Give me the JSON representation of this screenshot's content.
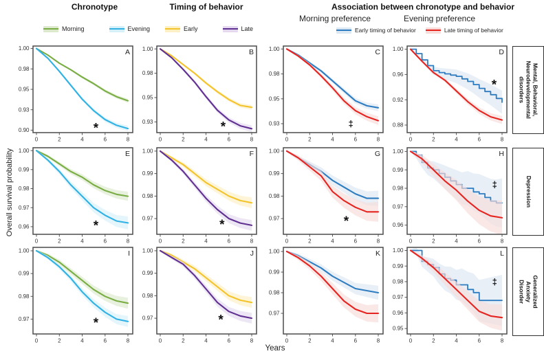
{
  "header": {
    "col1_title": "Chronotype",
    "col2_title": "Timing of behavior",
    "assoc_title": "Association between chronotype  and behavior",
    "sub_morning": "Morning preference",
    "sub_evening": "Evening preference"
  },
  "axes": {
    "ylabel": "Overall survival probability",
    "xlabel": "Years"
  },
  "row_labels": [
    "Mental, Behavioral,\nNeurodevelopmental\ndisorders",
    "Depression",
    "Generalized Anxiety\nDisorder"
  ],
  "legends": {
    "chronotype": [
      {
        "label": "Morning",
        "color": "#79ad44",
        "band": "#dce9cc"
      },
      {
        "label": "Evening",
        "color": "#2fb1e3",
        "band": "#d6f0fa"
      }
    ],
    "timing": [
      {
        "label": "Early",
        "color": "#f3c32c",
        "band": "#fdf0c4"
      },
      {
        "label": "Late",
        "color": "#5f2f91",
        "band": "#e4d9ee"
      }
    ],
    "association": [
      {
        "label": "Early timing of behavior",
        "color": "#2e7cc0",
        "band": "#dbe7f3"
      },
      {
        "label": "Late timing of behavior",
        "color": "#e52420",
        "band": "#f8dcda"
      }
    ]
  },
  "chart_data": [
    {
      "type": "line",
      "letter": "A",
      "group": "Chronotype",
      "row": "Mental, Behavioral, Neurodevelopmental disorders",
      "xticks": [
        0,
        2,
        4,
        6,
        8
      ],
      "ylim": [
        0.897,
        1.003
      ],
      "ytick_values": [
        1.0,
        0.975,
        0.95,
        0.925,
        0.9
      ],
      "ytick_labels": [
        "1.00",
        "0.98",
        "0.95",
        "0.93",
        "0.90"
      ],
      "sig": {
        "symbol": "*",
        "x": 5.2,
        "y": 0.906
      },
      "series": [
        {
          "name": "Morning",
          "color": "#79ad44",
          "band_color": "#dce9cc",
          "band": 0.002,
          "values": [
            1.0,
            0.992,
            0.982,
            0.974,
            0.965,
            0.957,
            0.948,
            0.941,
            0.936
          ]
        },
        {
          "name": "Evening",
          "color": "#2fb1e3",
          "band_color": "#d6f0fa",
          "band": 0.003,
          "values": [
            1.0,
            0.988,
            0.972,
            0.955,
            0.938,
            0.924,
            0.913,
            0.906,
            0.902
          ]
        }
      ]
    },
    {
      "type": "line",
      "letter": "B",
      "group": "Timing of behavior",
      "row": "Mental, Behavioral, Neurodevelopmental disorders",
      "xticks": [
        0,
        2,
        4,
        6,
        8
      ],
      "ylim": [
        0.914,
        1.003
      ],
      "ytick_values": [
        1.0,
        0.975,
        0.95,
        0.925
      ],
      "ytick_labels": [
        "1.00",
        "0.98",
        "0.95",
        "0.93"
      ],
      "sig": {
        "symbol": "*",
        "x": 5.5,
        "y": 0.923
      },
      "series": [
        {
          "name": "Early",
          "color": "#f3c32c",
          "band_color": "#fdf0c4",
          "band": 0.002,
          "values": [
            1.0,
            0.993,
            0.984,
            0.975,
            0.965,
            0.956,
            0.948,
            0.942,
            0.94
          ]
        },
        {
          "name": "Late",
          "color": "#5f2f91",
          "band_color": "#e4d9ee",
          "band": 0.003,
          "values": [
            1.0,
            0.991,
            0.979,
            0.966,
            0.951,
            0.937,
            0.927,
            0.921,
            0.918
          ]
        }
      ]
    },
    {
      "type": "line",
      "letter": "C",
      "group": "Morning preference",
      "row": "Mental, Behavioral, Neurodevelopmental disorders",
      "xticks": [
        0,
        2,
        4,
        6,
        8
      ],
      "ylim": [
        0.916,
        1.003
      ],
      "ytick_values": [
        1.0,
        0.975,
        0.95,
        0.925
      ],
      "ytick_labels": [
        "1.00",
        "0.98",
        "0.95",
        "0.93"
      ],
      "sig": {
        "symbol": "‡",
        "x": 5.6,
        "y": 0.925
      },
      "series": [
        {
          "name": "Early timing of behavior",
          "color": "#2e7cc0",
          "band_color": "#dbe7f3",
          "band": 0.003,
          "values": [
            1.0,
            0.994,
            0.986,
            0.978,
            0.968,
            0.958,
            0.948,
            0.943,
            0.941
          ]
        },
        {
          "name": "Late timing of behavior",
          "color": "#e52420",
          "band_color": "#f8dcda",
          "band": 0.004,
          "values": [
            1.0,
            0.993,
            0.984,
            0.973,
            0.961,
            0.948,
            0.938,
            0.932,
            0.928
          ]
        }
      ]
    },
    {
      "type": "line",
      "letter": "D",
      "group": "Evening preference",
      "row": "Mental, Behavioral, Neurodevelopmental disorders",
      "xticks": [
        0,
        2,
        4,
        6,
        8
      ],
      "ylim": [
        0.868,
        1.005
      ],
      "ytick_values": [
        1.0,
        0.96,
        0.92,
        0.88
      ],
      "ytick_labels": [
        "1.00",
        "0.96",
        "0.92",
        "0.88"
      ],
      "sig": {
        "symbol": "*",
        "x": 7.3,
        "y": 0.948
      },
      "series": [
        {
          "name": "Early timing of behavior",
          "color": "#2e7cc0",
          "band_color": "#dbe7f3",
          "band": 0.018,
          "step": true,
          "values": [
            1.0,
            0.993,
            0.983,
            0.974,
            0.966,
            0.963,
            0.961,
            0.959,
            0.957,
            0.953,
            0.949,
            0.944,
            0.938,
            0.933,
            0.928,
            0.922,
            0.916
          ]
        },
        {
          "name": "Late timing of behavior",
          "color": "#e52420",
          "band_color": "#f8dcda",
          "band": 0.006,
          "values": [
            1.0,
            0.981,
            0.963,
            0.951,
            0.934,
            0.917,
            0.903,
            0.893,
            0.888
          ]
        }
      ]
    },
    {
      "type": "line",
      "letter": "E",
      "group": "Chronotype",
      "row": "Depression",
      "xticks": [
        0,
        2,
        4,
        6,
        8
      ],
      "ylim": [
        0.956,
        1.0015
      ],
      "ytick_values": [
        1.0,
        0.99,
        0.98,
        0.97,
        0.96
      ],
      "ytick_labels": [
        "1.00",
        "0.99",
        "0.98",
        "0.97",
        "0.96"
      ],
      "sig": {
        "symbol": "*",
        "x": 5.2,
        "y": 0.962
      },
      "series": [
        {
          "name": "Morning",
          "color": "#79ad44",
          "band_color": "#dce9cc",
          "band": 0.002,
          "values": [
            1.0,
            0.997,
            0.993,
            0.989,
            0.986,
            0.982,
            0.979,
            0.977,
            0.976
          ]
        },
        {
          "name": "Evening",
          "color": "#2fb1e3",
          "band_color": "#d6f0fa",
          "band": 0.003,
          "values": [
            1.0,
            0.995,
            0.989,
            0.982,
            0.976,
            0.97,
            0.966,
            0.963,
            0.962
          ]
        }
      ]
    },
    {
      "type": "line",
      "letter": "F",
      "group": "Timing of behavior",
      "row": "Depression",
      "xticks": [
        0,
        2,
        4,
        6,
        8
      ],
      "ylim": [
        0.963,
        1.0015
      ],
      "ytick_values": [
        1.0,
        0.99,
        0.98,
        0.97
      ],
      "ytick_labels": [
        "1.00",
        "0.99",
        "0.98",
        "0.97"
      ],
      "sig": {
        "symbol": "*",
        "x": 5.4,
        "y": 0.9685
      },
      "series": [
        {
          "name": "Early",
          "color": "#f3c32c",
          "band_color": "#fdf0c4",
          "band": 0.002,
          "values": [
            1.0,
            0.997,
            0.994,
            0.99,
            0.986,
            0.983,
            0.98,
            0.978,
            0.977
          ]
        },
        {
          "name": "Late",
          "color": "#5f2f91",
          "band_color": "#e4d9ee",
          "band": 0.002,
          "values": [
            1.0,
            0.996,
            0.991,
            0.985,
            0.979,
            0.974,
            0.97,
            0.968,
            0.967
          ]
        }
      ]
    },
    {
      "type": "line",
      "letter": "G",
      "group": "Morning preference",
      "row": "Depression",
      "xticks": [
        0,
        2,
        4,
        6,
        8
      ],
      "ylim": [
        0.963,
        1.0015
      ],
      "ytick_values": [
        1.0,
        0.99,
        0.98,
        0.97
      ],
      "ytick_labels": [
        "1.00",
        "0.99",
        "0.98",
        "0.97"
      ],
      "sig": {
        "symbol": "*",
        "x": 5.2,
        "y": 0.97
      },
      "series": [
        {
          "name": "Early timing of behavior",
          "color": "#2e7cc0",
          "band_color": "#dbe7f3",
          "band": 0.003,
          "values": [
            1.0,
            0.997,
            0.994,
            0.991,
            0.987,
            0.984,
            0.981,
            0.979,
            0.979
          ]
        },
        {
          "name": "Late timing of behavior",
          "color": "#e52420",
          "band_color": "#f8dcda",
          "band": 0.004,
          "values": [
            1.0,
            0.997,
            0.993,
            0.989,
            0.982,
            0.978,
            0.975,
            0.973,
            0.973
          ]
        }
      ]
    },
    {
      "type": "line",
      "letter": "H",
      "group": "Evening preference",
      "row": "Depression",
      "xticks": [
        0,
        2,
        4,
        6,
        8
      ],
      "ylim": [
        0.955,
        1.002
      ],
      "ytick_values": [
        1.0,
        0.99,
        0.98,
        0.97,
        0.96
      ],
      "ytick_labels": [
        "1.00",
        "0.99",
        "0.98",
        "0.97",
        "0.96"
      ],
      "sig": {
        "symbol": "‡",
        "x": 7.35,
        "y": 0.982
      },
      "series": [
        {
          "name": "Early timing of behavior",
          "color": "#2e7cc0",
          "band_color": "#dbe7f3",
          "band": 0.013,
          "step": true,
          "values": [
            1.0,
            0.998,
            0.994,
            0.991,
            0.99,
            0.988,
            0.986,
            0.984,
            0.982,
            0.98,
            0.98,
            0.978,
            0.977,
            0.975,
            0.973,
            0.972,
            0.972
          ]
        },
        {
          "name": "Late timing of behavior",
          "color": "#e52420",
          "band_color": "#f8dcda",
          "band": 0.009,
          "values": [
            1.0,
            0.996,
            0.99,
            0.984,
            0.979,
            0.973,
            0.968,
            0.965,
            0.964
          ]
        }
      ]
    },
    {
      "type": "line",
      "letter": "I",
      "group": "Chronotype",
      "row": "Generalized Anxiety Disorder",
      "xticks": [
        0,
        2,
        4,
        6,
        8
      ],
      "ylim": [
        0.9635,
        1.0015
      ],
      "ytick_values": [
        1.0,
        0.99,
        0.98,
        0.97
      ],
      "ytick_labels": [
        "1.00",
        "0.99",
        "0.98",
        "0.97"
      ],
      "sig": {
        "symbol": "*",
        "x": 5.2,
        "y": 0.9695
      },
      "series": [
        {
          "name": "Morning",
          "color": "#79ad44",
          "band_color": "#dce9cc",
          "band": 0.002,
          "values": [
            1.0,
            0.998,
            0.995,
            0.991,
            0.987,
            0.983,
            0.98,
            0.978,
            0.977
          ]
        },
        {
          "name": "Evening",
          "color": "#2fb1e3",
          "band_color": "#d6f0fa",
          "band": 0.002,
          "values": [
            1.0,
            0.997,
            0.993,
            0.988,
            0.982,
            0.977,
            0.973,
            0.97,
            0.969
          ]
        }
      ]
    },
    {
      "type": "line",
      "letter": "J",
      "group": "Timing of behavior",
      "row": "Generalized Anxiety Disorder",
      "xticks": [
        0,
        2,
        4,
        6,
        8
      ],
      "ylim": [
        0.963,
        1.0015
      ],
      "ytick_values": [
        1.0,
        0.99,
        0.98,
        0.97
      ],
      "ytick_labels": [
        "1.00",
        "0.99",
        "0.98",
        "0.97"
      ],
      "sig": {
        "symbol": "*",
        "x": 5.3,
        "y": 0.9705
      },
      "series": [
        {
          "name": "Early",
          "color": "#f3c32c",
          "band_color": "#fdf0c4",
          "band": 0.002,
          "values": [
            1.0,
            0.998,
            0.995,
            0.992,
            0.988,
            0.984,
            0.98,
            0.978,
            0.977
          ]
        },
        {
          "name": "Late",
          "color": "#5f2f91",
          "band_color": "#e4d9ee",
          "band": 0.002,
          "values": [
            1.0,
            0.997,
            0.994,
            0.989,
            0.983,
            0.977,
            0.973,
            0.971,
            0.97
          ]
        }
      ]
    },
    {
      "type": "line",
      "letter": "K",
      "group": "Morning preference",
      "row": "Generalized Anxiety Disorder",
      "xticks": [
        0,
        2,
        4,
        6,
        8
      ],
      "ylim": [
        0.96,
        1.002
      ],
      "ytick_values": [
        1.0,
        0.99,
        0.98,
        0.97
      ],
      "ytick_labels": [
        "1.00",
        "0.99",
        "0.98",
        "0.97"
      ],
      "sig": null,
      "series": [
        {
          "name": "Early timing of behavior",
          "color": "#2e7cc0",
          "band_color": "#dbe7f3",
          "band": 0.003,
          "values": [
            1.0,
            0.998,
            0.995,
            0.992,
            0.988,
            0.985,
            0.982,
            0.981,
            0.98
          ]
        },
        {
          "name": "Late timing of behavior",
          "color": "#e52420",
          "band_color": "#f8dcda",
          "band": 0.004,
          "values": [
            1.0,
            0.997,
            0.993,
            0.988,
            0.982,
            0.976,
            0.972,
            0.97,
            0.97
          ]
        }
      ]
    },
    {
      "type": "line",
      "letter": "L",
      "group": "Evening preference",
      "row": "Generalized Anxiety Disorder",
      "xticks": [
        0,
        2,
        4,
        6,
        8
      ],
      "ylim": [
        0.9465,
        1.002
      ],
      "ytick_values": [
        1.0,
        0.99,
        0.98,
        0.97,
        0.96,
        0.95
      ],
      "ytick_labels": [
        "1.00",
        "0.99",
        "0.98",
        "0.97",
        "0.96",
        "0.95"
      ],
      "sig": {
        "symbol": "‡",
        "x": 7.35,
        "y": 0.98
      },
      "series": [
        {
          "name": "Early timing of behavior",
          "color": "#2e7cc0",
          "band_color": "#dbe7f3",
          "band": 0.016,
          "step": true,
          "values": [
            1.0,
            1.0,
            0.993,
            0.991,
            0.989,
            0.985,
            0.982,
            0.981,
            0.978,
            0.978,
            0.975,
            0.973,
            0.968,
            0.968,
            0.968,
            0.968,
            0.968
          ]
        },
        {
          "name": "Late timing of behavior",
          "color": "#e52420",
          "band_color": "#f8dcda",
          "band": 0.008,
          "values": [
            1.0,
            0.995,
            0.989,
            0.982,
            0.975,
            0.968,
            0.961,
            0.958,
            0.957
          ]
        }
      ]
    }
  ]
}
